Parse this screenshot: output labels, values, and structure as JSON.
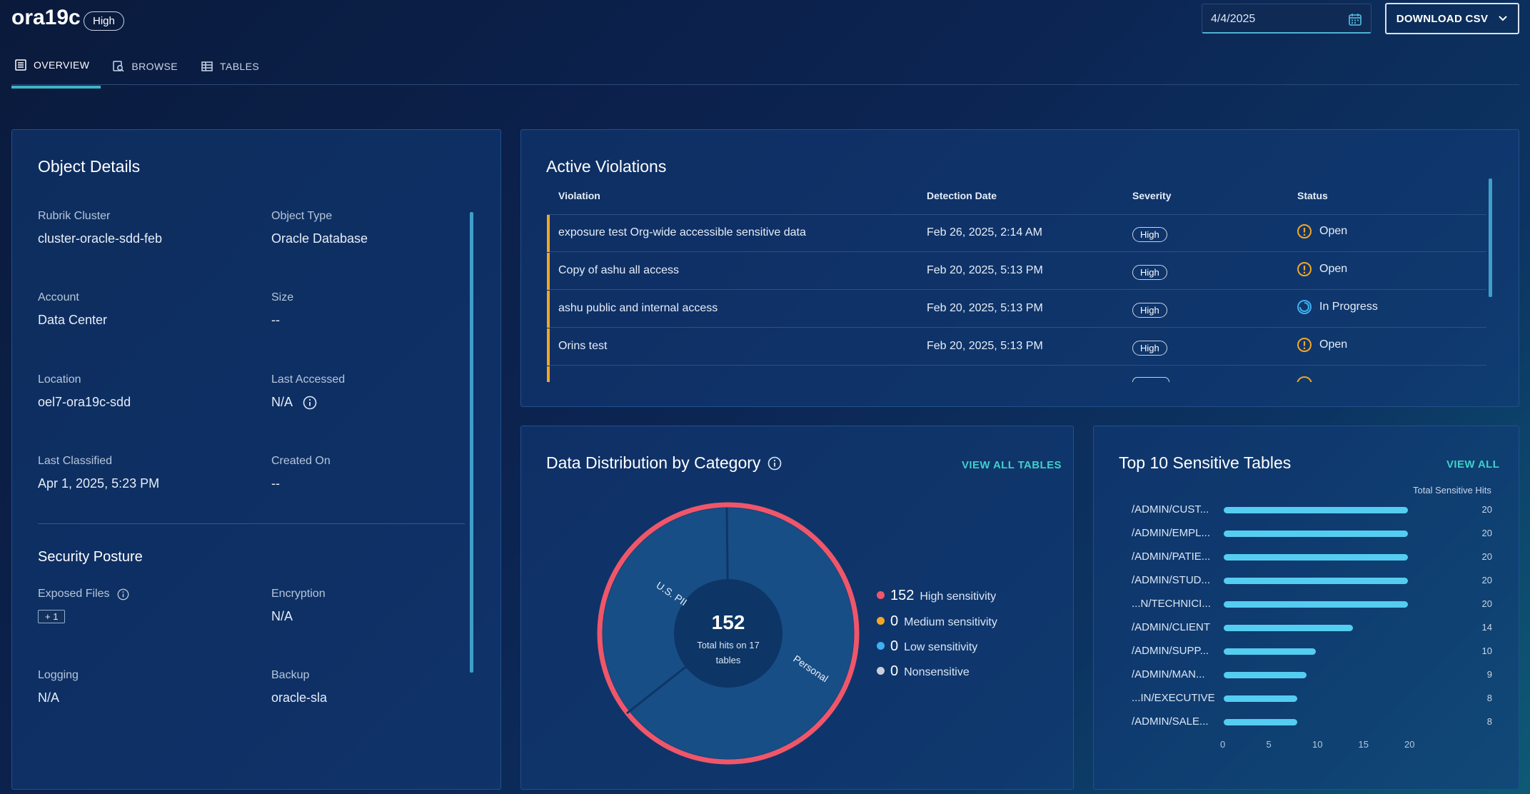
{
  "header": {
    "title": "ora19c",
    "severity_badge": "High",
    "date_value": "4/4/2025",
    "download_label": "DOWNLOAD CSV"
  },
  "tabs": [
    {
      "label": "OVERVIEW",
      "icon": "document-list-icon",
      "active": true
    },
    {
      "label": "BROWSE",
      "icon": "browse-search-icon",
      "active": false
    },
    {
      "label": "TABLES",
      "icon": "table-grid-icon",
      "active": false
    }
  ],
  "object_details": {
    "title": "Object Details",
    "fields": [
      {
        "label": "Rubrik Cluster",
        "value": "cluster-oracle-sdd-feb"
      },
      {
        "label": "Object Type",
        "value": "Oracle Database"
      },
      {
        "label": "Account",
        "value": "Data Center"
      },
      {
        "label": "Size",
        "value": "--"
      },
      {
        "label": "Location",
        "value": "oel7-ora19c-sdd"
      },
      {
        "label": "Last Accessed",
        "value": "N/A"
      },
      {
        "label": "Last Classified",
        "value": "Apr 1, 2025, 5:23 PM"
      },
      {
        "label": "Created On",
        "value": "--"
      }
    ]
  },
  "security_posture": {
    "title": "Security Posture",
    "fields": [
      {
        "label": "Exposed Files",
        "value": "+ 1"
      },
      {
        "label": "Encryption",
        "value": "N/A"
      },
      {
        "label": "Logging",
        "value": "N/A"
      },
      {
        "label": "Backup",
        "value": "oracle-sla"
      }
    ]
  },
  "violations": {
    "title": "Active Violations",
    "columns": [
      "Violation",
      "Detection Date",
      "Severity",
      "Status"
    ],
    "rows": [
      {
        "violation": "exposure test Org-wide accessible sensitive data",
        "date": "Feb 26, 2025, 2:14 AM",
        "severity": "High",
        "status": "Open",
        "status_icon": "warning-circle-icon"
      },
      {
        "violation": "Copy of ashu all access",
        "date": "Feb 20, 2025, 5:13 PM",
        "severity": "High",
        "status": "Open",
        "status_icon": "warning-circle-icon"
      },
      {
        "violation": "ashu public and internal access",
        "date": "Feb 20, 2025, 5:13 PM",
        "severity": "High",
        "status": "In Progress",
        "status_icon": "progress-circle-icon"
      },
      {
        "violation": "Orins test",
        "date": "Feb 20, 2025, 5:13 PM",
        "severity": "High",
        "status": "Open",
        "status_icon": "warning-circle-icon"
      }
    ],
    "colors": {
      "severity_bar": "#f5a623",
      "open": "#f5a623",
      "in_progress": "#3fb0f0"
    }
  },
  "distribution": {
    "title": "Data Distribution by Category",
    "view_all_label": "VIEW ALL TABLES",
    "center_value": "152",
    "center_caption_1": "Total hits on 17",
    "center_caption_2": "tables",
    "segment_labels": [
      "U.S. PII",
      "Personal"
    ],
    "legend": [
      {
        "count": "152",
        "label": "High sensitivity",
        "color": "#f0566a"
      },
      {
        "count": "0",
        "label": "Medium sensitivity",
        "color": "#f5a623"
      },
      {
        "count": "0",
        "label": "Low sensitivity",
        "color": "#3fb0f0"
      },
      {
        "count": "0",
        "label": "Nonsensitive",
        "color": "#c9d0d8"
      }
    ]
  },
  "top_tables": {
    "title": "Top 10 Sensitive Tables",
    "view_all_label": "VIEW ALL",
    "x_title": "Total Sensitive Hits"
  },
  "chart_data": {
    "type": "bar",
    "orientation": "horizontal",
    "categories": [
      "/ADMIN/CUST...",
      "/ADMIN/EMPL...",
      "/ADMIN/PATIE...",
      "/ADMIN/STUD...",
      "...N/TECHNICI...",
      "/ADMIN/CLIENT",
      "/ADMIN/SUPP...",
      "/ADMIN/MAN...",
      "...IN/EXECUTIVE",
      "/ADMIN/SALE..."
    ],
    "values": [
      20,
      20,
      20,
      20,
      20,
      14,
      10,
      9,
      8,
      8
    ],
    "xlabel": "Total Sensitive Hits",
    "xlim": [
      0,
      20
    ],
    "xticks": [
      "0",
      "5",
      "10",
      "15",
      "20"
    ],
    "color": "#55cdf0"
  }
}
